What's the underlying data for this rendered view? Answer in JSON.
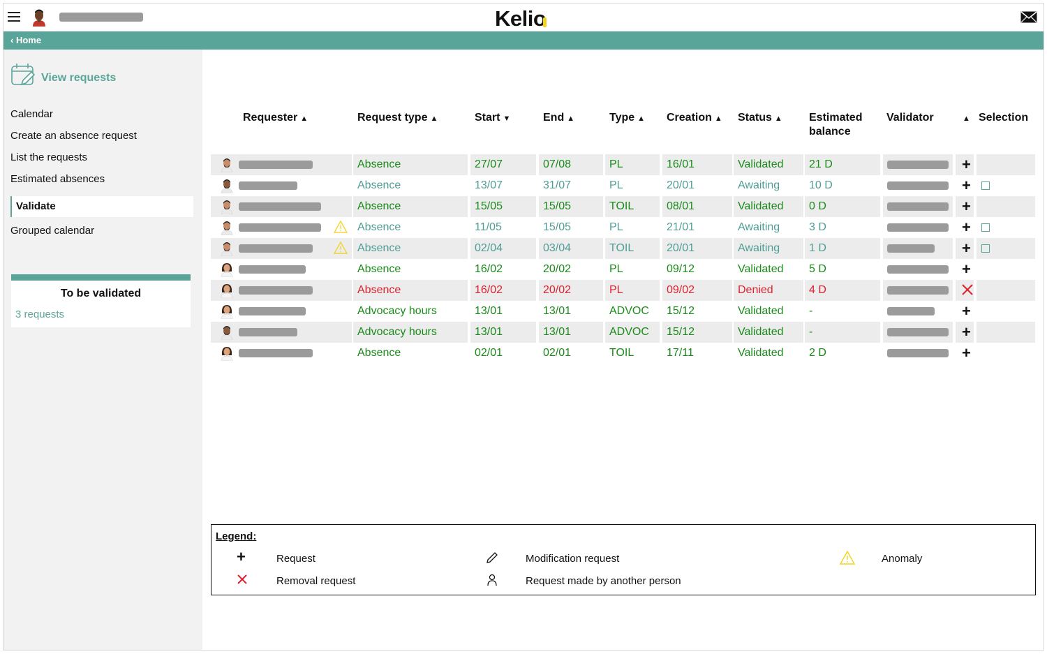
{
  "header": {
    "logo": "Kelio",
    "breadcrumb": "Home"
  },
  "colors": {
    "accent": "#5aa59a",
    "validated": "#1a8a1a",
    "awaiting": "#4f9d96",
    "denied": "#e0202e",
    "warning": "#f3d21b"
  },
  "sidebar": {
    "view_requests": "View requests",
    "items": [
      {
        "label": "Calendar"
      },
      {
        "label": "Create an absence request"
      },
      {
        "label": "List the requests"
      },
      {
        "label": "Estimated absences"
      },
      {
        "label": "Validate"
      },
      {
        "label": "Grouped calendar"
      }
    ],
    "to_be_validated": {
      "title": "To be validated",
      "count": "3 requests"
    }
  },
  "table": {
    "columns": {
      "requester": "Requester",
      "request_type": "Request type",
      "start": "Start",
      "end": "End",
      "type": "Type",
      "creation": "Creation",
      "status": "Status",
      "estimated_balance_1": "Estimated",
      "estimated_balance_2": "balance",
      "validator": "Validator",
      "selection": "Selection"
    },
    "rows": [
      {
        "request_type": "Absence",
        "start": "27/07",
        "end": "07/08",
        "type": "PL",
        "creation": "16/01",
        "status": "Validated",
        "balance": "21 D"
      },
      {
        "request_type": "Absence",
        "start": "13/07",
        "end": "31/07",
        "type": "PL",
        "creation": "20/01",
        "status": "Awaiting",
        "balance": "10 D"
      },
      {
        "request_type": "Absence",
        "start": "15/05",
        "end": "15/05",
        "type": "TOIL",
        "creation": "08/01",
        "status": "Validated",
        "balance": "0 D"
      },
      {
        "request_type": "Absence",
        "start": "11/05",
        "end": "15/05",
        "type": "PL",
        "creation": "21/01",
        "status": "Awaiting",
        "balance": "3 D"
      },
      {
        "request_type": "Absence",
        "start": "02/04",
        "end": "03/04",
        "type": "TOIL",
        "creation": "20/01",
        "status": "Awaiting",
        "balance": "1 D"
      },
      {
        "request_type": "Absence",
        "start": "16/02",
        "end": "20/02",
        "type": "PL",
        "creation": "09/12",
        "status": "Validated",
        "balance": "5 D"
      },
      {
        "request_type": "Absence",
        "start": "16/02",
        "end": "20/02",
        "type": "PL",
        "creation": "09/02",
        "status": "Denied",
        "balance": "4 D"
      },
      {
        "request_type": "Advocacy hours",
        "start": "13/01",
        "end": "13/01",
        "type": "ADVOC",
        "creation": "15/12",
        "status": "Validated",
        "balance": "-"
      },
      {
        "request_type": "Advocacy hours",
        "start": "13/01",
        "end": "13/01",
        "type": "ADVOC",
        "creation": "15/12",
        "status": "Validated",
        "balance": "-"
      },
      {
        "request_type": "Absence",
        "start": "02/01",
        "end": "02/01",
        "type": "TOIL",
        "creation": "17/11",
        "status": "Validated",
        "balance": "2 D"
      }
    ]
  },
  "legend": {
    "title": "Legend:",
    "request": "Request",
    "removal_request": "Removal request",
    "modification_request": "Modification request",
    "request_other": "Request made by another person",
    "anomaly": "Anomaly"
  }
}
